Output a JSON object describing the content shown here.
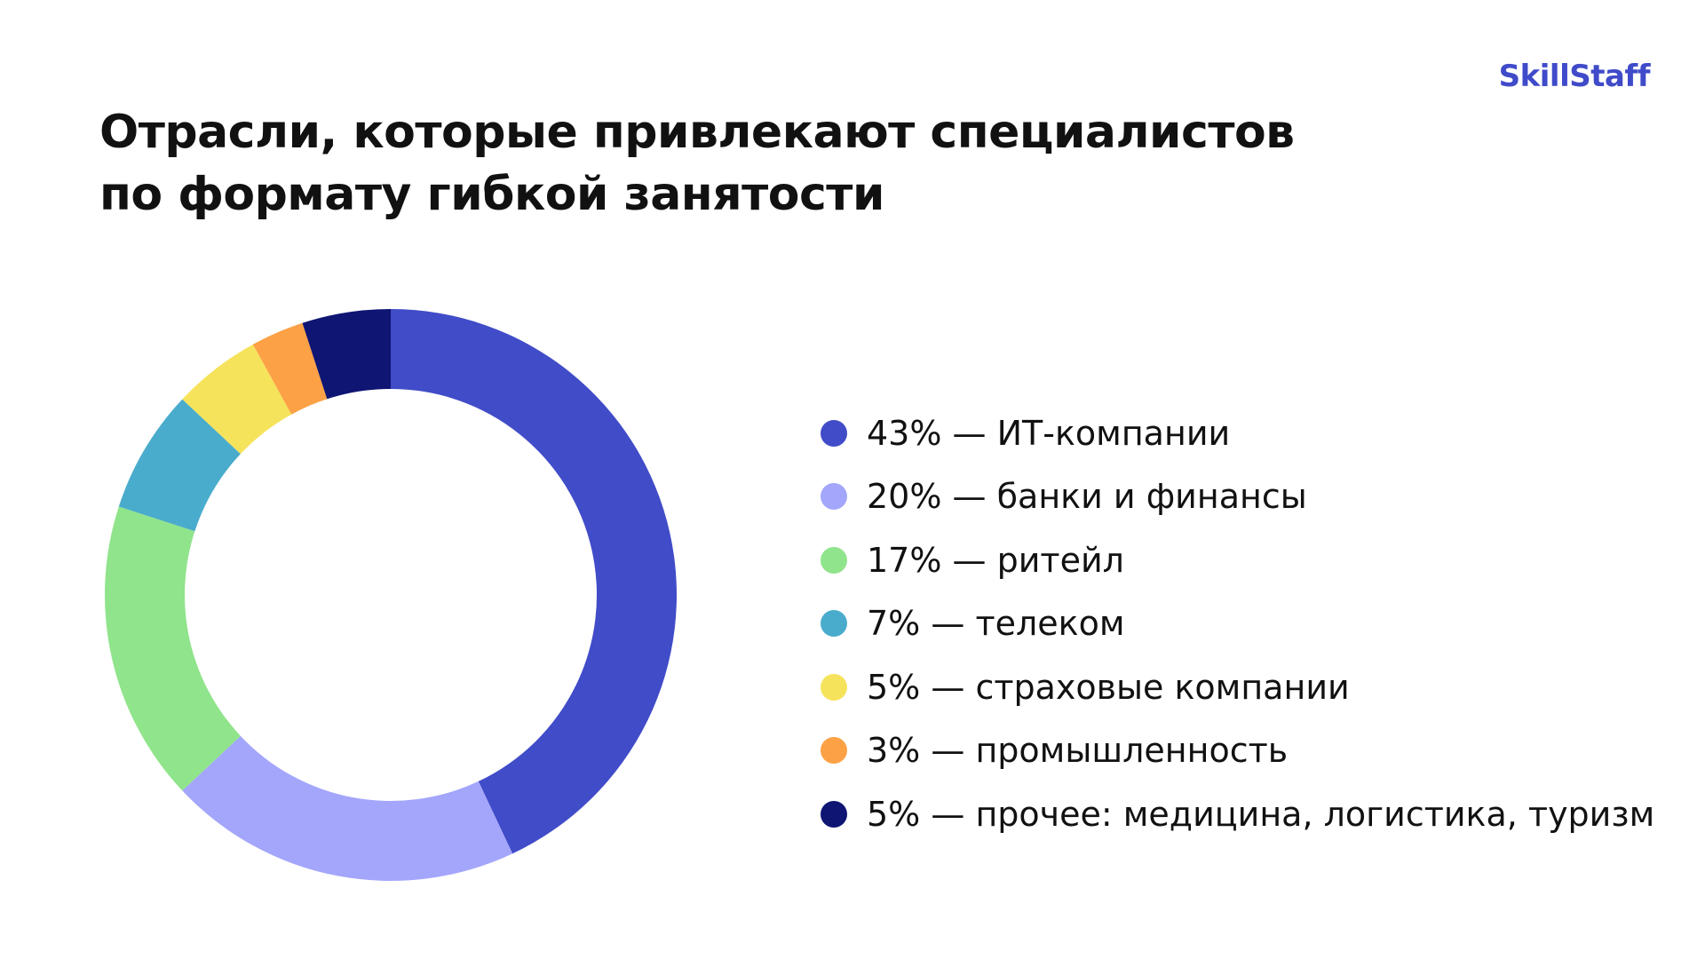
{
  "brand": {
    "logo_text": "SkillStaff",
    "color": "#3f4bc9"
  },
  "header": {
    "title_line1": "Отрасли, которые привлекают специалистов",
    "title_line2": "по формату гибкой занятости"
  },
  "chart_data": {
    "type": "pie",
    "variant": "donut",
    "unit": "%",
    "start_angle_deg": 0,
    "direction": "clockwise",
    "legend_position": "right",
    "slices": [
      {
        "label": "43% — ИТ-компании",
        "value": 43,
        "color": "#414cc8"
      },
      {
        "label": "20% — банки и финансы",
        "value": 20,
        "color": "#a3a6fb"
      },
      {
        "label": "17% — ритейл",
        "value": 17,
        "color": "#90e48b"
      },
      {
        "label": "7% — телеком",
        "value": 7,
        "color": "#4aaccc"
      },
      {
        "label": "5% — страховые компании",
        "value": 5,
        "color": "#f6e35c"
      },
      {
        "label": "3% — промышленность",
        "value": 3,
        "color": "#fca146"
      },
      {
        "label": "5% — прочее: медицина, логистика, туризм",
        "value": 5,
        "color": "#0f1573"
      }
    ]
  }
}
